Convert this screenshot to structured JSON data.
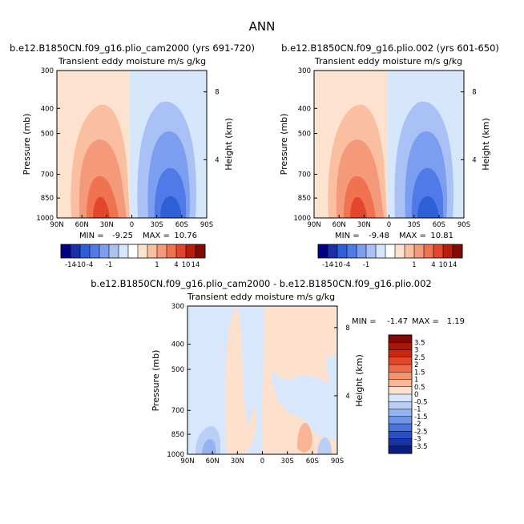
{
  "figure": {
    "title": "ANN"
  },
  "chart_data": [
    {
      "type": "heatmap",
      "panel": "top-left",
      "case": "b.e12.B1850CN.f09_g16.plio_cam2000 (yrs 691-720)",
      "title": "Transient eddy moisture m/s g/kg",
      "ylabel": "Pressure (mb)",
      "y2label": "Height (km)",
      "x_ticks": [
        "90N",
        "60N",
        "30N",
        "0",
        "30S",
        "60S",
        "90S"
      ],
      "y_ticks": [
        "300",
        "400",
        "500",
        "700",
        "850",
        "1000"
      ],
      "y2_ticks": [
        "8",
        "4"
      ],
      "min_label": "MIN =",
      "min_value": "-9.25",
      "max_label": "MAX =",
      "max_value": "10.76",
      "colorbar_labels": [
        "-14",
        "-10",
        "-4",
        "-1",
        "1",
        "4",
        "10",
        "14"
      ],
      "field": "main"
    },
    {
      "type": "heatmap",
      "panel": "top-right",
      "case": "b.e12.B1850CN.f09_g16.plio.002 (yrs 601-650)",
      "title": "Transient eddy moisture m/s g/kg",
      "ylabel": "Pressure (mb)",
      "y2label": "Height (km)",
      "x_ticks": [
        "90N",
        "60N",
        "30N",
        "0",
        "30S",
        "60S",
        "90S"
      ],
      "y_ticks": [
        "300",
        "400",
        "500",
        "700",
        "850",
        "1000"
      ],
      "y2_ticks": [
        "8",
        "4"
      ],
      "min_label": "MIN =",
      "min_value": "-9.48",
      "max_label": "MAX =",
      "max_value": "10.81",
      "colorbar_labels": [
        "-14",
        "-10",
        "-4",
        "-1",
        "1",
        "4",
        "10",
        "14"
      ],
      "field": "main"
    },
    {
      "type": "heatmap",
      "panel": "bottom",
      "case": "b.e12.B1850CN.f09_g16.plio_cam2000 - b.e12.B1850CN.f09_g16.plio.002",
      "title": "Transient eddy moisture m/s g/kg",
      "ylabel": "Pressure (mb)",
      "y2label": "Height (km)",
      "x_ticks": [
        "90N",
        "60N",
        "30N",
        "0",
        "30S",
        "60S",
        "90S"
      ],
      "y_ticks": [
        "300",
        "400",
        "500",
        "700",
        "850",
        "1000"
      ],
      "y2_ticks": [
        "8",
        "4"
      ],
      "min_label": "MIN =",
      "min_value": "-1.47",
      "max_label": "MAX =",
      "max_value": "1.19",
      "colorbar_labels": [
        "3.5",
        "3",
        "2.5",
        "2",
        "1.5",
        "1",
        "0.5",
        "0",
        "-0.5",
        "-1",
        "-1.5",
        "-2",
        "-2.5",
        "-3",
        "-3.5"
      ],
      "field": "diff"
    }
  ],
  "colors": {
    "main_scale": [
      "#000085",
      "#1b2fa6",
      "#2f5fd6",
      "#4f7ae8",
      "#7c9ef0",
      "#a9c1f5",
      "#d6e6fb",
      "#ffffff",
      "#fde3cf",
      "#f9bfa0",
      "#f49a7a",
      "#ef7350",
      "#e2462b",
      "#b81d0e",
      "#820a04"
    ],
    "diff_scale": [
      "#820a04",
      "#a81708",
      "#c9270f",
      "#e4462a",
      "#f06a49",
      "#f5936f",
      "#f9b596",
      "#fde1cd",
      "#d8e7fb",
      "#b9cff5",
      "#95b3ef",
      "#7094e7",
      "#4a72db",
      "#2a4fc7",
      "#1733a4",
      "#0a1c85"
    ]
  }
}
